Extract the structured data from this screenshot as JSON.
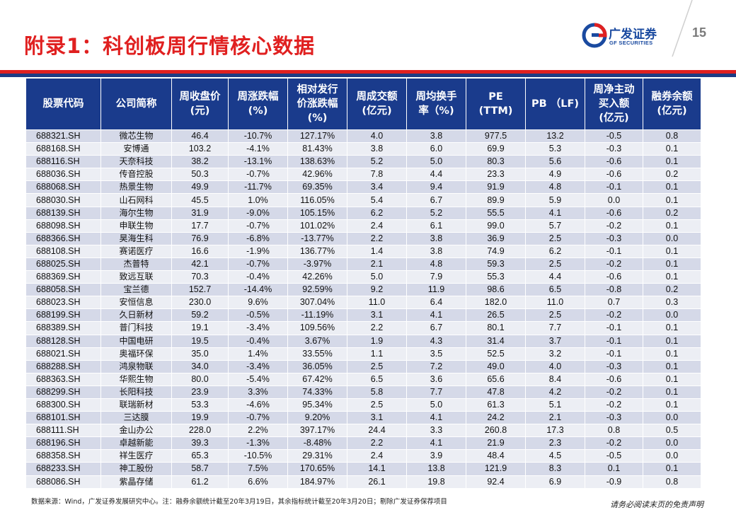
{
  "header": {
    "title": "附录1：科创板周行情核心数据",
    "logo_cn": "广发证券",
    "logo_en": "GF SECURITIES",
    "page_number": "15"
  },
  "colors": {
    "title_red": "#e02020",
    "header_blue": "#1a3b8c",
    "band_red": "#e02020",
    "band_blue": "#1d3c85"
  },
  "table": {
    "columns": [
      "股票代码",
      "公司简称",
      "周收盘价(元)",
      "周涨跌幅(%)",
      "相对发行价涨跌幅(%)",
      "周成交额(亿元)",
      "周均换手率（%)",
      "PE (TTM)",
      "PB （LF)",
      "周净主动买入额(亿元)",
      "融券余额(亿元)"
    ],
    "rows": [
      [
        "688321.SH",
        "微芯生物",
        "46.4",
        "-10.7%",
        "127.17%",
        "4.0",
        "3.8",
        "977.5",
        "13.2",
        "-0.5",
        "0.8"
      ],
      [
        "688168.SH",
        "安博通",
        "103.2",
        "-4.1%",
        "81.43%",
        "3.8",
        "6.0",
        "69.9",
        "5.3",
        "-0.3",
        "0.1"
      ],
      [
        "688116.SH",
        "天奈科技",
        "38.2",
        "-13.1%",
        "138.63%",
        "5.2",
        "5.0",
        "80.3",
        "5.6",
        "-0.6",
        "0.1"
      ],
      [
        "688036.SH",
        "传音控股",
        "50.3",
        "-0.7%",
        "42.96%",
        "7.8",
        "4.4",
        "23.3",
        "4.9",
        "-0.6",
        "0.2"
      ],
      [
        "688068.SH",
        "热景生物",
        "49.9",
        "-11.7%",
        "69.35%",
        "3.4",
        "9.4",
        "91.9",
        "4.8",
        "-0.1",
        "0.1"
      ],
      [
        "688030.SH",
        "山石网科",
        "45.5",
        "1.0%",
        "116.05%",
        "5.4",
        "6.7",
        "89.9",
        "5.9",
        "0.0",
        "0.1"
      ],
      [
        "688139.SH",
        "海尔生物",
        "31.9",
        "-9.0%",
        "105.15%",
        "6.2",
        "5.2",
        "55.5",
        "4.1",
        "-0.6",
        "0.2"
      ],
      [
        "688098.SH",
        "申联生物",
        "17.7",
        "-0.7%",
        "101.02%",
        "2.4",
        "6.1",
        "99.0",
        "5.7",
        "-0.2",
        "0.1"
      ],
      [
        "688366.SH",
        "昊海生科",
        "76.9",
        "-6.8%",
        "-13.77%",
        "2.2",
        "3.8",
        "36.9",
        "2.5",
        "-0.3",
        "0.0"
      ],
      [
        "688108.SH",
        "赛诺医疗",
        "16.6",
        "-1.9%",
        "136.77%",
        "1.4",
        "3.8",
        "74.9",
        "6.2",
        "-0.1",
        "0.1"
      ],
      [
        "688025.SH",
        "杰普特",
        "42.1",
        "-0.7%",
        "-3.97%",
        "2.1",
        "4.8",
        "59.3",
        "2.5",
        "-0.2",
        "0.1"
      ],
      [
        "688369.SH",
        "致远互联",
        "70.3",
        "-0.4%",
        "42.26%",
        "5.0",
        "7.9",
        "55.3",
        "4.4",
        "-0.6",
        "0.1"
      ],
      [
        "688058.SH",
        "宝兰德",
        "152.7",
        "-14.4%",
        "92.59%",
        "9.2",
        "11.9",
        "98.6",
        "6.5",
        "-0.8",
        "0.2"
      ],
      [
        "688023.SH",
        "安恒信息",
        "230.0",
        "9.6%",
        "307.04%",
        "11.0",
        "6.4",
        "182.0",
        "11.0",
        "0.7",
        "0.3"
      ],
      [
        "688199.SH",
        "久日新材",
        "59.2",
        "-0.5%",
        "-11.19%",
        "3.1",
        "4.1",
        "26.5",
        "2.5",
        "-0.2",
        "0.0"
      ],
      [
        "688389.SH",
        "普门科技",
        "19.1",
        "-3.4%",
        "109.56%",
        "2.2",
        "6.7",
        "80.1",
        "7.7",
        "-0.1",
        "0.1"
      ],
      [
        "688128.SH",
        "中国电研",
        "19.5",
        "-0.4%",
        "3.67%",
        "1.9",
        "4.3",
        "31.4",
        "3.7",
        "-0.1",
        "0.1"
      ],
      [
        "688021.SH",
        "奥福环保",
        "35.0",
        "1.4%",
        "33.55%",
        "1.1",
        "3.5",
        "52.5",
        "3.2",
        "-0.1",
        "0.1"
      ],
      [
        "688288.SH",
        "鸿泉物联",
        "34.0",
        "-3.4%",
        "36.05%",
        "2.5",
        "7.2",
        "49.0",
        "4.0",
        "-0.3",
        "0.1"
      ],
      [
        "688363.SH",
        "华熙生物",
        "80.0",
        "-5.4%",
        "67.42%",
        "6.5",
        "3.6",
        "65.6",
        "8.4",
        "-0.6",
        "0.1"
      ],
      [
        "688299.SH",
        "长阳科技",
        "23.9",
        "3.3%",
        "74.33%",
        "5.8",
        "7.7",
        "47.8",
        "4.2",
        "-0.2",
        "0.1"
      ],
      [
        "688300.SH",
        "联瑞新材",
        "53.3",
        "-4.6%",
        "95.34%",
        "2.5",
        "5.0",
        "61.3",
        "5.1",
        "-0.2",
        "0.1"
      ],
      [
        "688101.SH",
        "三达膜",
        "19.9",
        "-0.7%",
        "9.20%",
        "3.1",
        "4.1",
        "24.2",
        "2.1",
        "-0.3",
        "0.0"
      ],
      [
        "688111.SH",
        "金山办公",
        "228.0",
        "2.2%",
        "397.17%",
        "24.4",
        "3.3",
        "260.8",
        "17.3",
        "0.8",
        "0.5"
      ],
      [
        "688196.SH",
        "卓越新能",
        "39.3",
        "-1.3%",
        "-8.48%",
        "2.2",
        "4.1",
        "21.9",
        "2.3",
        "-0.2",
        "0.0"
      ],
      [
        "688358.SH",
        "祥生医疗",
        "65.3",
        "-10.5%",
        "29.31%",
        "2.4",
        "3.9",
        "48.4",
        "4.5",
        "-0.5",
        "0.0"
      ],
      [
        "688233.SH",
        "神工股份",
        "58.7",
        "7.5%",
        "170.65%",
        "14.1",
        "13.8",
        "121.9",
        "8.3",
        "0.1",
        "0.1"
      ],
      [
        "688086.SH",
        "紫晶存储",
        "61.2",
        "6.6%",
        "184.97%",
        "26.1",
        "19.8",
        "92.4",
        "6.9",
        "-0.9",
        "0.8"
      ]
    ]
  },
  "footer": {
    "source": "数据来源：Wind，广发证券发展研究中心。注：融券余额统计截至20年3月19日，其余指标统计截至20年3月20日；剔除广发证券保荐项目",
    "disclaimer": "请务必阅读末页的免责声明"
  }
}
